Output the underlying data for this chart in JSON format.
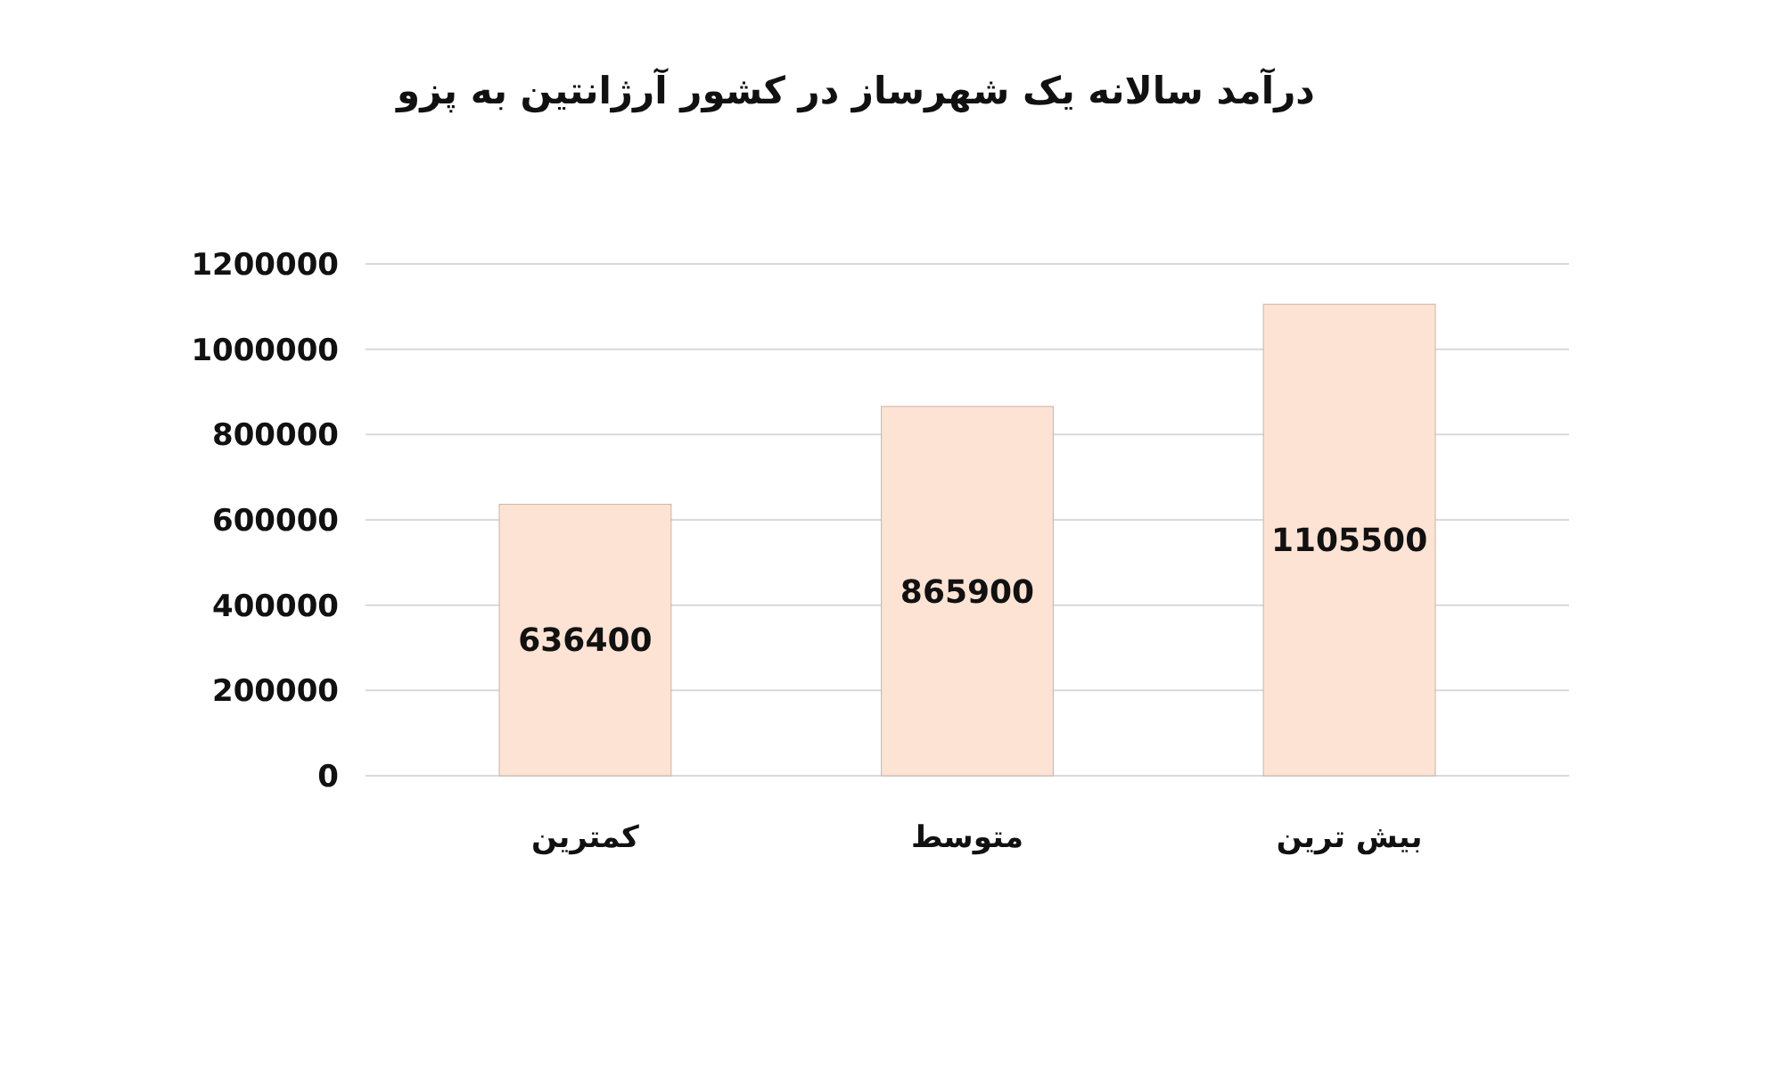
{
  "chart_data": {
    "type": "bar",
    "title": "درآمد سالانه یک شهرساز در کشور آرژانتین به پزو",
    "categories": [
      "کمترین",
      "متوسط",
      "بیش ترین"
    ],
    "values": [
      636400,
      865900,
      1105500
    ],
    "color": "#fce3d4",
    "ylim": [
      0,
      1200000
    ],
    "yticks": [
      0,
      200000,
      400000,
      600000,
      800000,
      1000000,
      1200000
    ],
    "grid": true,
    "data_labels": true
  }
}
